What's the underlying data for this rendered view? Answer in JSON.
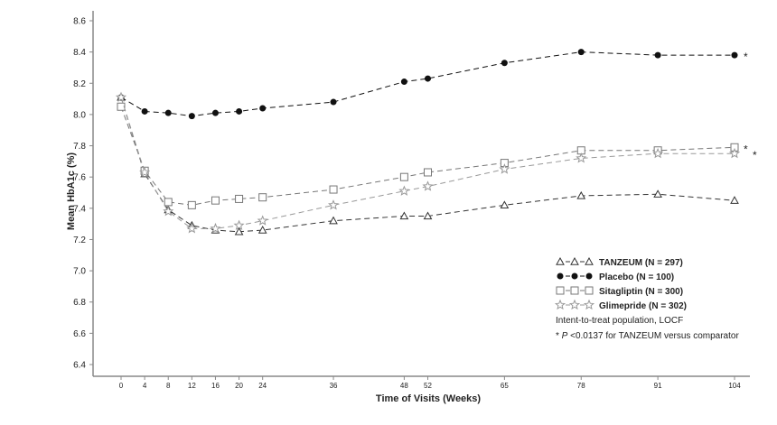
{
  "chart_data": {
    "type": "line",
    "title": "",
    "xlabel": "Time of Visits (Weeks)",
    "ylabel": "Mean HbA1c (%)",
    "x": [
      0,
      4,
      8,
      12,
      16,
      20,
      24,
      36,
      48,
      52,
      65,
      78,
      91,
      104
    ],
    "x_ticks": [
      0,
      4,
      8,
      12,
      16,
      20,
      24,
      36,
      48,
      52,
      65,
      78,
      91,
      104
    ],
    "xlim": [
      0,
      104
    ],
    "ylim": [
      6.4,
      8.6
    ],
    "y_ticks": [
      "6.4",
      "6.6",
      "6.8",
      "7.0",
      "7.2",
      "7.4",
      "7.6",
      "7.8",
      "8.0",
      "8.2",
      "8.4",
      "8.6"
    ],
    "grid": false,
    "legend_placement": "bottom-right",
    "series": [
      {
        "name": "TANZEUM (N = 297)",
        "marker": "triangle",
        "color": "#333333",
        "values": [
          8.11,
          7.62,
          7.39,
          7.29,
          7.26,
          7.25,
          7.26,
          7.32,
          7.35,
          7.35,
          7.42,
          7.48,
          7.49,
          7.45
        ],
        "end_mark": ""
      },
      {
        "name": "Placebo (N = 100)",
        "marker": "filled-circle",
        "color": "#111111",
        "values": [
          8.11,
          8.02,
          8.01,
          7.99,
          8.01,
          8.02,
          8.04,
          8.08,
          8.21,
          8.23,
          8.33,
          8.4,
          8.38,
          8.38
        ],
        "end_mark": "*"
      },
      {
        "name": "Sitagliptin (N = 300)",
        "marker": "square",
        "color": "#777777",
        "values": [
          8.05,
          7.64,
          7.44,
          7.42,
          7.45,
          7.46,
          7.47,
          7.52,
          7.6,
          7.63,
          7.69,
          7.77,
          7.77,
          7.79
        ],
        "end_mark": "*"
      },
      {
        "name": "Glimepride (N = 302)",
        "marker": "star",
        "color": "#999999",
        "values": [
          8.11,
          7.63,
          7.38,
          7.27,
          7.27,
          7.29,
          7.32,
          7.42,
          7.51,
          7.54,
          7.65,
          7.72,
          7.75,
          7.75
        ],
        "end_mark": "*"
      }
    ],
    "annotations": {
      "population": "Intent-to-treat population, LOCF",
      "footnote_star": "* ",
      "footnote_p": "P",
      "footnote_rest": " <0.0137 for TANZEUM versus comparator"
    }
  }
}
